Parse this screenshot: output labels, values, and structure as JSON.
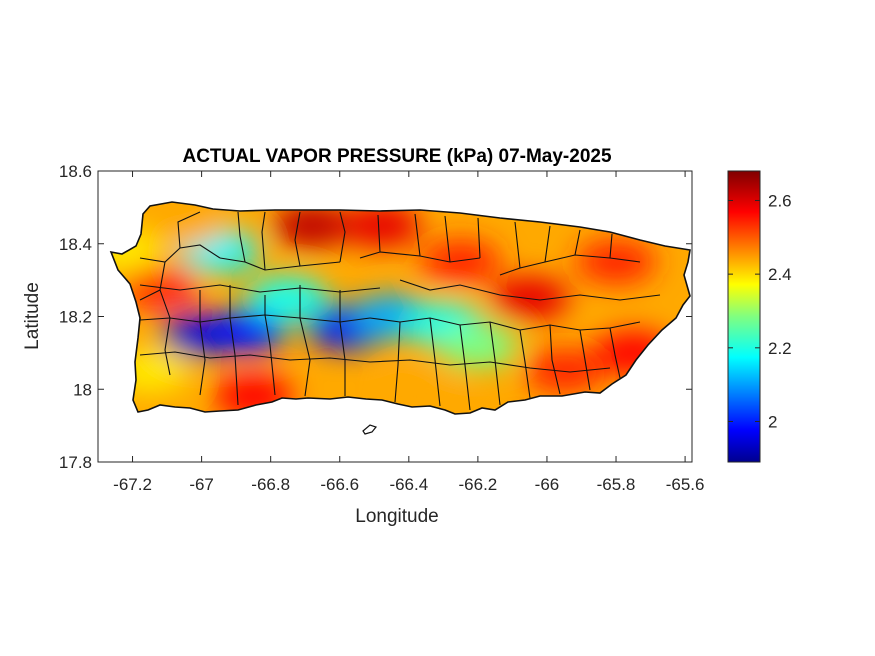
{
  "chart_data": {
    "type": "heatmap",
    "title": "ACTUAL VAPOR PRESSURE (kPa) 07-May-2025",
    "xlabel": "Longitude",
    "ylabel": "Latitude",
    "xlim": [
      -67.3,
      -65.58
    ],
    "ylim": [
      17.8,
      18.6
    ],
    "xticks": [
      -67.2,
      -67,
      -66.8,
      -66.6,
      -66.4,
      -66.2,
      -66,
      -65.8,
      -65.6
    ],
    "xtick_labels": [
      "-67.2",
      "-67",
      "-66.8",
      "-66.6",
      "-66.4",
      "-66.2",
      "-66",
      "-65.8",
      "-65.6"
    ],
    "yticks": [
      17.8,
      18,
      18.2,
      18.4,
      18.6
    ],
    "ytick_labels": [
      "17.8",
      "18",
      "18.2",
      "18.4",
      "18.6"
    ],
    "colorbar": {
      "colormap": "jet",
      "range": [
        1.89,
        2.68
      ],
      "ticks": [
        2,
        2.2,
        2.4,
        2.6
      ],
      "tick_labels": [
        "2",
        "2.2",
        "2.4",
        "2.6"
      ]
    },
    "grid": false,
    "field": [
      {
        "lon": -67.0,
        "lat": 18.15,
        "value": 1.95
      },
      {
        "lon": -66.87,
        "lat": 18.16,
        "value": 2.0
      },
      {
        "lon": -66.58,
        "lat": 18.17,
        "value": 1.98
      },
      {
        "lon": -66.45,
        "lat": 18.2,
        "value": 2.12
      },
      {
        "lon": -66.3,
        "lat": 18.18,
        "value": 2.2
      },
      {
        "lon": -66.95,
        "lat": 18.38,
        "value": 2.18
      },
      {
        "lon": -66.75,
        "lat": 18.25,
        "value": 2.2
      },
      {
        "lon": -66.2,
        "lat": 18.12,
        "value": 2.28
      },
      {
        "lon": -66.68,
        "lat": 18.45,
        "value": 2.63
      },
      {
        "lon": -66.48,
        "lat": 18.45,
        "value": 2.6
      },
      {
        "lon": -66.05,
        "lat": 18.25,
        "value": 2.6
      },
      {
        "lon": -66.25,
        "lat": 18.35,
        "value": 2.55
      },
      {
        "lon": -65.95,
        "lat": 18.05,
        "value": 2.55
      },
      {
        "lon": -65.75,
        "lat": 18.1,
        "value": 2.58
      },
      {
        "lon": -65.8,
        "lat": 18.35,
        "value": 2.55
      },
      {
        "lon": -67.12,
        "lat": 18.28,
        "value": 2.55
      },
      {
        "lon": -66.85,
        "lat": 17.98,
        "value": 2.58
      },
      {
        "lon": -67.15,
        "lat": 18.05,
        "value": 2.4
      },
      {
        "lon": -66.35,
        "lat": 17.98,
        "value": 2.45
      },
      {
        "lon": -67.22,
        "lat": 18.38,
        "value": 2.4
      },
      {
        "lon": -67.05,
        "lat": 18.45,
        "value": 2.45
      }
    ]
  }
}
